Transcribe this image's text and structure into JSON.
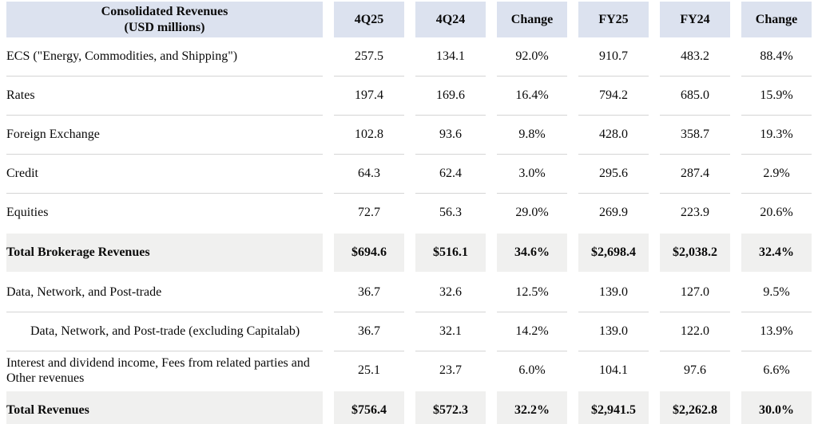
{
  "table": {
    "title": "Consolidated Revenues",
    "subtitle": "(USD millions)",
    "columns": [
      "4Q25",
      "4Q24",
      "Change",
      "FY25",
      "FY24",
      "Change"
    ],
    "rows": [
      {
        "label": "ECS (\"Energy, Commodities, and Shipping\")",
        "values": [
          "257.5",
          "134.1",
          "92.0%",
          "910.7",
          "483.2",
          "88.4%"
        ]
      },
      {
        "label": "Rates",
        "values": [
          "197.4",
          "169.6",
          "16.4%",
          "794.2",
          "685.0",
          "15.9%"
        ]
      },
      {
        "label": "Foreign Exchange",
        "values": [
          "102.8",
          "93.6",
          "9.8%",
          "428.0",
          "358.7",
          "19.3%"
        ]
      },
      {
        "label": "Credit",
        "values": [
          "64.3",
          "62.4",
          "3.0%",
          "295.6",
          "287.4",
          "2.9%"
        ]
      },
      {
        "label": "Equities",
        "values": [
          "72.7",
          "56.3",
          "29.0%",
          "269.9",
          "223.9",
          "20.6%"
        ]
      },
      {
        "label": "Total Brokerage Revenues",
        "values": [
          "$694.6",
          "$516.1",
          "34.6%",
          "$2,698.4",
          "$2,038.2",
          "32.4%"
        ]
      },
      {
        "label": "Data, Network, and Post-trade",
        "values": [
          "36.7",
          "32.6",
          "12.5%",
          "139.0",
          "127.0",
          "9.5%"
        ]
      },
      {
        "label": "Data, Network, and Post-trade (excluding Capitalab)",
        "values": [
          "36.7",
          "32.1",
          "14.2%",
          "139.0",
          "122.0",
          "13.9%"
        ]
      },
      {
        "label": "Interest and dividend income, Fees from related parties and Other revenues",
        "values": [
          "25.1",
          "23.7",
          "6.0%",
          "104.1",
          "97.6",
          "6.6%"
        ]
      },
      {
        "label": "Total Revenues",
        "values": [
          "$756.4",
          "$572.3",
          "32.2%",
          "$2,941.5",
          "$2,262.8",
          "30.0%"
        ]
      }
    ]
  },
  "colors": {
    "header_bg": "#dce2ef",
    "total_row_bg": "#f0f0ef",
    "divider": "#d4d4d4",
    "text": "#0a0a0a"
  }
}
